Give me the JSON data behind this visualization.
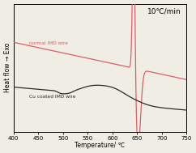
{
  "title_annotation": "10℃/min",
  "xlabel": "Temperature/ ℃",
  "ylabel": "Heat flow → Exo",
  "xlim": [
    400,
    750
  ],
  "xticks": [
    400,
    450,
    500,
    550,
    600,
    650,
    700,
    750
  ],
  "label_normal": "normal IMD wire",
  "label_cu": "Cu coated IMD wire",
  "color_normal": "#d9606a",
  "color_cu": "#2a2a2a",
  "background": "#f0ede5"
}
